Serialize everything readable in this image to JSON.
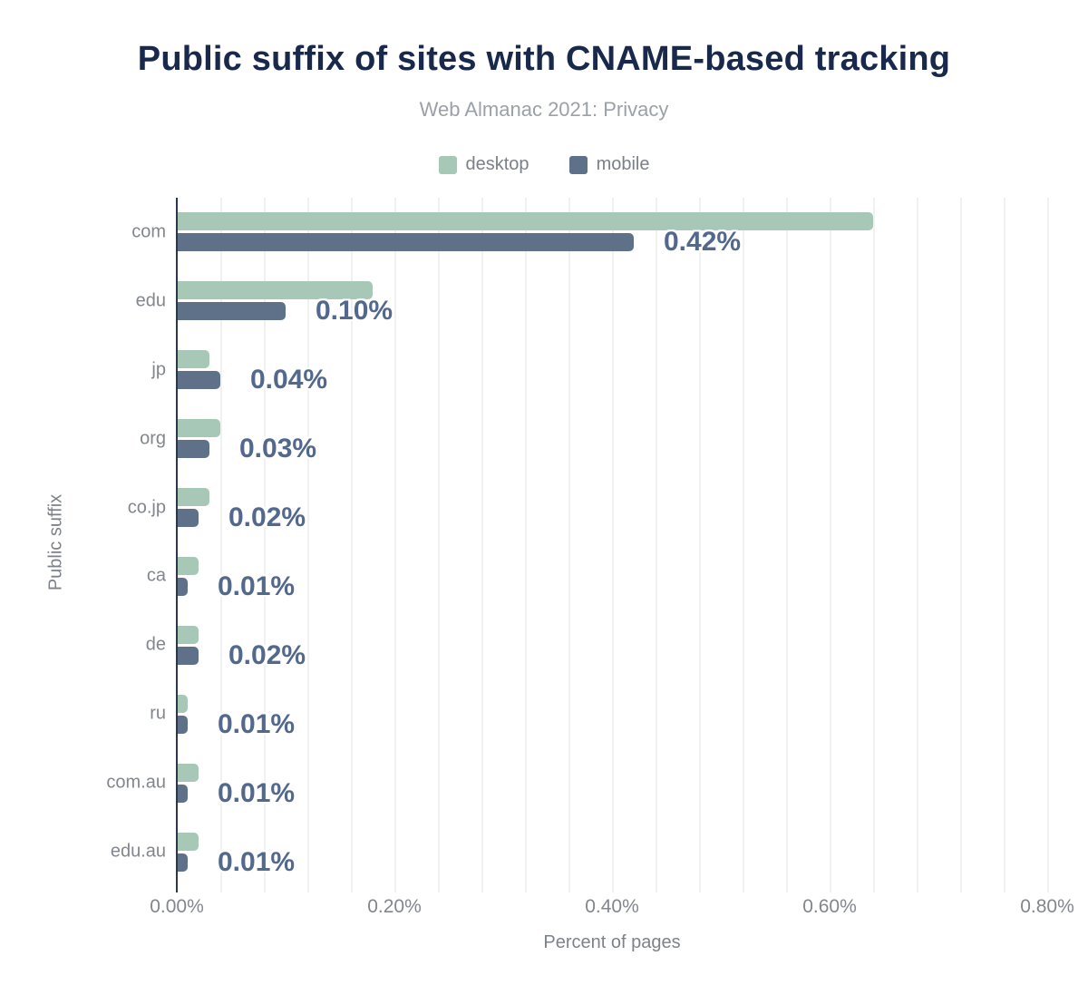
{
  "title": "Public suffix of sites with CNAME-based tracking",
  "subtitle": "Web Almanac 2021: Privacy",
  "legend": {
    "items": [
      {
        "label": "desktop",
        "color": "#a7c8b7"
      },
      {
        "label": "mobile",
        "color": "#5e7189"
      }
    ]
  },
  "axes": {
    "x_title": "Percent of pages",
    "y_title": "Public suffix"
  },
  "colors": {
    "title": "#19294b",
    "subtitle": "#9ba1a8",
    "desktop": "#a7c8b7",
    "mobile": "#5e7189",
    "value_label": "#52688c",
    "axis_line": "#2c3749",
    "gridline": "#f1f1f1",
    "tick_label": "#82868e"
  },
  "chart_data": {
    "type": "bar",
    "orientation": "horizontal",
    "title": "Public suffix of sites with CNAME-based tracking",
    "subtitle": "Web Almanac 2021: Privacy",
    "xlabel": "Percent of pages",
    "ylabel": "Public suffix",
    "categories": [
      "com",
      "edu",
      "jp",
      "org",
      "co.jp",
      "ca",
      "de",
      "ru",
      "com.au",
      "edu.au"
    ],
    "series": [
      {
        "name": "desktop",
        "color": "#a7c8b7",
        "values": [
          0.64,
          0.18,
          0.03,
          0.04,
          0.03,
          0.02,
          0.02,
          0.01,
          0.02,
          0.02
        ]
      },
      {
        "name": "mobile",
        "color": "#5e7189",
        "values": [
          0.42,
          0.1,
          0.04,
          0.03,
          0.02,
          0.01,
          0.02,
          0.01,
          0.01,
          0.01
        ]
      }
    ],
    "value_labels": [
      "0.42%",
      "0.10%",
      "0.04%",
      "0.03%",
      "0.02%",
      "0.01%",
      "0.02%",
      "0.01%",
      "0.01%",
      "0.01%"
    ],
    "value_label_series": "mobile",
    "xlim": [
      0,
      0.8
    ],
    "x_ticks": [
      0,
      0.2,
      0.4,
      0.6,
      0.8
    ],
    "x_tick_labels": [
      "0.00%",
      "0.20%",
      "0.40%",
      "0.60%",
      "0.80%"
    ],
    "minor_grid_step": 0.04,
    "grid": "vertical-minor",
    "legend_position": "top"
  }
}
